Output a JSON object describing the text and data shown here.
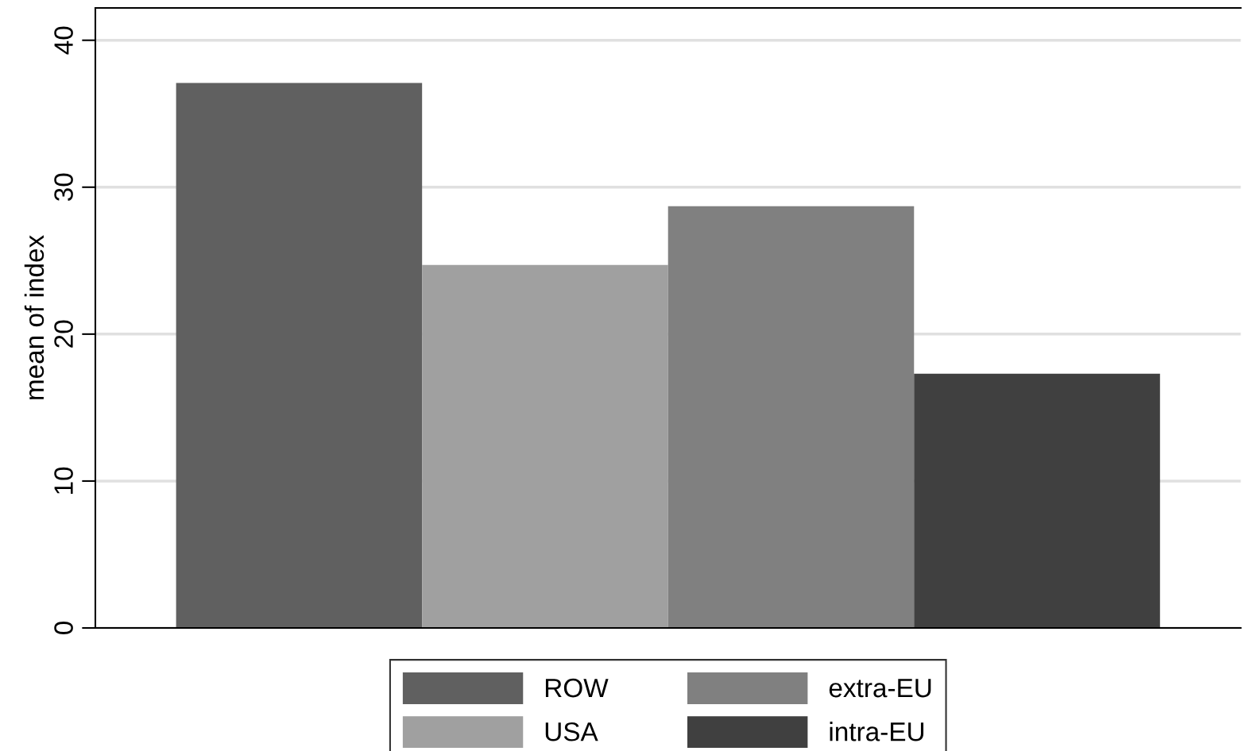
{
  "chart_data": {
    "type": "bar",
    "ylabel": "mean of index",
    "categories": [
      null
    ],
    "series": [
      {
        "name": "ROW",
        "color": "#606060",
        "values": [
          37.1
        ]
      },
      {
        "name": "USA",
        "color": "#a0a0a0",
        "values": [
          24.7
        ]
      },
      {
        "name": "extra-EU",
        "color": "#808080",
        "values": [
          28.7
        ]
      },
      {
        "name": "intra-EU",
        "color": "#404040",
        "values": [
          17.3
        ]
      }
    ],
    "ylim": [
      0,
      42.2
    ],
    "yticks": [
      0,
      10,
      20,
      30,
      40
    ],
    "grid": "y",
    "legend": "bottom"
  }
}
